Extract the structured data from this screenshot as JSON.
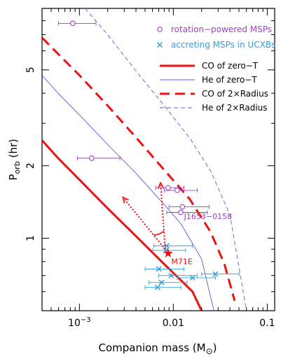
{
  "chart_data": {
    "type": "scatter",
    "xlabel": "Companion mass (M",
    "xlabel_symbol": "⊙",
    "xlabel_close": ")",
    "ylabel_main": "P",
    "ylabel_sub": "orb",
    "ylabel_unit": " (hr)",
    "x_scale": "log",
    "y_scale": "log",
    "xlim": [
      0.0004,
      0.12
    ],
    "ylim": [
      0.5,
      9.0
    ],
    "x_ticks": [
      {
        "value": 0.001,
        "label": "10",
        "sup": "−3"
      },
      {
        "value": 0.01,
        "label": "0.01",
        "sup": ""
      },
      {
        "value": 0.1,
        "label": "0.1",
        "sup": ""
      }
    ],
    "y_ticks": [
      {
        "value": 1,
        "label": "1"
      },
      {
        "value": 2,
        "label": "2"
      },
      {
        "value": 5,
        "label": "5"
      }
    ],
    "legend": {
      "placement": "top-right",
      "markers": [
        {
          "label": "rotation−powered MSPs",
          "marker": "circle",
          "color": "#a040c0"
        },
        {
          "label": "accreting MSPs in UCXBs",
          "marker": "x",
          "color": "#2aa0e0"
        }
      ],
      "lines": [
        {
          "label": "CO of zero−T",
          "color": "#ee1111",
          "style": "solid-thick"
        },
        {
          "label": "He of zero−T",
          "color": "#5a5ae0",
          "style": "solid-thin"
        },
        {
          "label": "CO of 2×Radius",
          "color": "#ee1111",
          "style": "dashed-thick"
        },
        {
          "label": "He of 2×Radius",
          "color": "#5a5ae0",
          "style": "dashed-thin"
        }
      ]
    },
    "curves": [
      {
        "name": "CO of zero−T",
        "color": "#ee1111",
        "style": "solid-thick",
        "x": [
          0.0004,
          0.0006,
          0.001,
          0.002,
          0.004,
          0.008,
          0.012,
          0.016,
          0.02
        ],
        "y": [
          2.55,
          2.14,
          1.75,
          1.33,
          1.02,
          0.78,
          0.67,
          0.6,
          0.5
        ]
      },
      {
        "name": "He of zero−T",
        "color": "#5a5ae0",
        "style": "solid-thin",
        "x": [
          0.0004,
          0.0006,
          0.001,
          0.002,
          0.004,
          0.008,
          0.012,
          0.02,
          0.027
        ],
        "y": [
          4.75,
          3.98,
          3.25,
          2.45,
          1.86,
          1.38,
          1.15,
          0.82,
          0.5
        ]
      },
      {
        "name": "CO of 2×Radius",
        "color": "#ee1111",
        "style": "dashed-thick",
        "x": [
          0.0004,
          0.0006,
          0.001,
          0.002,
          0.004,
          0.008,
          0.015,
          0.025,
          0.035,
          0.045
        ],
        "y": [
          6.8,
          5.8,
          4.75,
          3.55,
          2.62,
          1.92,
          1.45,
          1.06,
          0.78,
          0.55
        ]
      },
      {
        "name": "He of 2×Radius",
        "color": "#5a5ae0",
        "style": "dashed-thin",
        "x": [
          0.00115,
          0.002,
          0.004,
          0.008,
          0.015,
          0.025,
          0.04,
          0.06
        ],
        "y": [
          9.0,
          7.0,
          4.95,
          3.55,
          2.6,
          1.9,
          1.25,
          0.5
        ]
      }
    ],
    "series": [
      {
        "marker": "circle",
        "color": "#a040c0",
        "points": [
          {
            "x": 0.00085,
            "y": 7.8,
            "xerr": [
              0.0006,
              0.0015
            ]
          },
          {
            "x": 0.00135,
            "y": 2.15,
            "xerr": [
              0.00095,
              0.0027
            ]
          },
          {
            "x": 0.0088,
            "y": 1.62,
            "xerr": [
              0.0065,
              0.013
            ]
          },
          {
            "x": 0.011,
            "y": 1.58,
            "xerr": [
              0.008,
              0.018
            ]
          },
          {
            "x": 0.0125,
            "y": 1.35,
            "xerr": [
              0.009,
              0.024
            ]
          },
          {
            "x": 0.012,
            "y": 1.28,
            "xerr": [
              0.0085,
              0.023
            ]
          }
        ]
      },
      {
        "marker": "x",
        "color": "#2aa0e0",
        "points": [
          {
            "x": 0.0085,
            "y": 0.93,
            "xerr": [
              0.0062,
              0.016
            ]
          },
          {
            "x": 0.0083,
            "y": 0.89,
            "xerr": [
              0.006,
              0.0135
            ]
          },
          {
            "x": 0.007,
            "y": 0.745,
            "xerr": [
              0.005,
              0.013
            ]
          },
          {
            "x": 0.0095,
            "y": 0.7,
            "xerr": [
              0.007,
              0.018
            ]
          },
          {
            "x": 0.016,
            "y": 0.685,
            "xerr": [
              0.011,
              0.028
            ]
          },
          {
            "x": 0.028,
            "y": 0.71,
            "xerr": [
              0.02,
              0.05
            ]
          },
          {
            "x": 0.0075,
            "y": 0.655,
            "xerr": [
              0.0055,
              0.014
            ]
          },
          {
            "x": 0.0068,
            "y": 0.625,
            "xerr": [
              0.005,
              0.012
            ]
          }
        ]
      }
    ],
    "star": {
      "label": "M71E",
      "x": 0.0088,
      "y": 0.865,
      "color": "#ee1111"
    },
    "annotations": [
      {
        "text": "J1653−0158",
        "x": 0.013,
        "y": 1.2,
        "color": "#a040c0"
      },
      {
        "text": "M71E",
        "x": 0.0095,
        "y": 0.78,
        "color": "#ee1111"
      }
    ],
    "arrows": [
      {
        "from": [
          0.0082,
          0.9
        ],
        "to": [
          0.0073,
          1.7
        ],
        "color": "#ee1111"
      },
      {
        "from": [
          0.0082,
          0.9
        ],
        "to": [
          0.0029,
          1.48
        ],
        "color": "#ee1111"
      }
    ]
  }
}
